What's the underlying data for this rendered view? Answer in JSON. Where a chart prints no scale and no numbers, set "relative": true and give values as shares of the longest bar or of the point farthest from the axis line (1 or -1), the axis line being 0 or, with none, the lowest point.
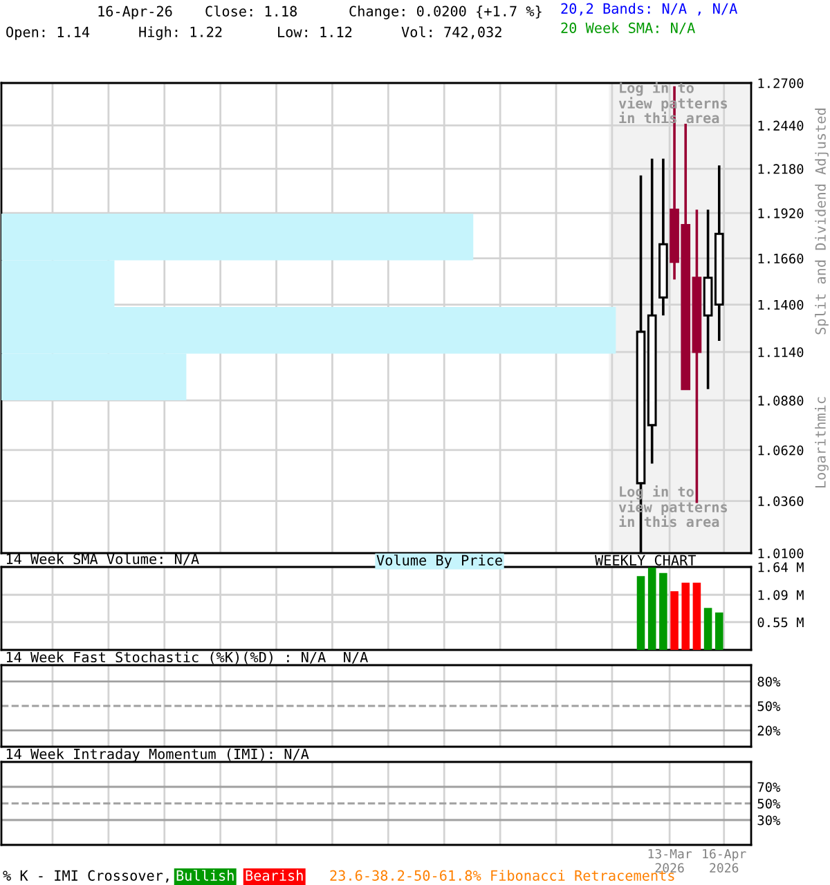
{
  "chart_data": [
    {
      "type": "candlestick",
      "x": [
        "2026-02-23",
        "2026-03-02",
        "2026-03-09",
        "2026-03-16",
        "2026-03-23",
        "2026-03-30",
        "2026-04-06",
        "2026-04-13"
      ],
      "ohlc": [
        [
          1.045,
          1.214,
          1.01,
          1.125
        ],
        [
          1.075,
          1.224,
          1.055,
          1.134
        ],
        [
          1.144,
          1.224,
          1.134,
          1.174
        ],
        [
          1.194,
          1.268,
          1.154,
          1.164
        ],
        [
          1.185,
          1.245,
          1.094,
          1.094
        ],
        [
          1.155,
          1.194,
          1.035,
          1.114
        ],
        [
          1.134,
          1.194,
          1.094,
          1.155
        ],
        [
          1.14,
          1.22,
          1.12,
          1.18
        ]
      ],
      "colors": [
        "#000000",
        "#000000",
        "#000000",
        "#990033",
        "#990033",
        "#990033",
        "#000000",
        "#000000"
      ],
      "log": true,
      "ylim": [
        1.01,
        1.27
      ],
      "yticks": [
        {
          "value": 1.27,
          "label": "1.2700"
        },
        {
          "value": 1.244,
          "label": "1.2440"
        },
        {
          "value": 1.218,
          "label": "1.2180"
        },
        {
          "value": 1.192,
          "label": "1.1920"
        },
        {
          "value": 1.166,
          "label": "1.1660"
        },
        {
          "value": 1.14,
          "label": "1.1400"
        },
        {
          "value": 1.114,
          "label": "1.1140"
        },
        {
          "value": 1.088,
          "label": "1.0880"
        },
        {
          "value": 1.062,
          "label": "1.0620"
        },
        {
          "value": 1.036,
          "label": "1.0360"
        },
        {
          "value": 1.01,
          "label": "1.0100"
        }
      ],
      "xlim": [
        "2025-01-19",
        "2026-05-03"
      ],
      "xticks": [
        {
          "value": "2025-02-20",
          "label": null
        },
        {
          "value": "2025-03-27",
          "label": null
        },
        {
          "value": "2025-05-01",
          "label": null
        },
        {
          "value": "2025-06-05",
          "label": null
        },
        {
          "value": "2025-07-10",
          "label": null
        },
        {
          "value": "2025-08-14",
          "label": null
        },
        {
          "value": "2025-09-18",
          "label": null
        },
        {
          "value": "2025-10-23",
          "label": null
        },
        {
          "value": "2025-11-27",
          "label": null
        },
        {
          "value": "2026-01-01",
          "label": null
        },
        {
          "value": "2026-02-05",
          "label": null
        },
        {
          "value": "2026-03-13",
          "label": null
        },
        {
          "value": "2026-04-16",
          "label": null
        }
      ],
      "tick_labels": "y",
      "grid": true,
      "bands": [
        {
          "axis": "x",
          "from": "2026-02-03",
          "to": "2026-05-03",
          "color": "#f2f2f2"
        }
      ],
      "ylabel": "Split and Dividend Adjusted",
      "annotations": [
        "16-Apr-26",
        "Close: 1.18",
        "Change: 0.0200 {+1.7 %}",
        "Open: 1.14",
        "High: 1.22",
        "Low: 1.12",
        "Vol: 742,032",
        "20,2 Bands: N/A , N/A",
        "20 Week SMA: N/A",
        "Log in to\nview patterns\nin this area",
        "Log in to\nview patterns\nin this area",
        "Logarithmic"
      ]
    },
    {
      "type": "bar",
      "orientation": "horizontal",
      "relative": true,
      "title": "Volume By Price",
      "categories": [
        null,
        null,
        null,
        null
      ],
      "values": [
        0.768,
        0.184,
        1,
        0.301
      ],
      "color": "#c6f4fc"
    },
    {
      "type": "bar",
      "title": "14 Week SMA Volume: N/A",
      "x": [
        "2026-02-23",
        "2026-03-02",
        "2026-03-09",
        "2026-03-16",
        "2026-03-23",
        "2026-03-30",
        "2026-04-06",
        "2026-04-13"
      ],
      "values": [
        1.46,
        1.63,
        1.52,
        1.16,
        1.33,
        1.33,
        0.83,
        0.74
      ],
      "colors": [
        "#009900",
        "#009900",
        "#009900",
        "#ff0000",
        "#ff0000",
        "#ff0000",
        "#009900",
        "#009900"
      ],
      "ylim": [
        0,
        1.64
      ],
      "yticks": [
        {
          "value": 0.55,
          "label": "0.55 M"
        },
        {
          "value": 1.09,
          "label": "1.09 M"
        },
        {
          "value": 1.64,
          "label": "1.64 M"
        }
      ],
      "xlim": [
        "2025-01-19",
        "2026-05-03"
      ],
      "xticks": [
        {
          "value": "2025-02-20",
          "label": null
        },
        {
          "value": "2025-03-27",
          "label": null
        },
        {
          "value": "2025-05-01",
          "label": null
        },
        {
          "value": "2025-06-05",
          "label": null
        },
        {
          "value": "2025-07-10",
          "label": null
        },
        {
          "value": "2025-08-14",
          "label": null
        },
        {
          "value": "2025-09-18",
          "label": null
        },
        {
          "value": "2025-10-23",
          "label": null
        },
        {
          "value": "2025-11-27",
          "label": null
        },
        {
          "value": "2026-01-01",
          "label": null
        },
        {
          "value": "2026-02-05",
          "label": null
        },
        {
          "value": "2026-03-13",
          "label": null
        },
        {
          "value": "2026-04-16",
          "label": null
        }
      ],
      "tick_labels": "y",
      "grid": true,
      "annotations": [
        "WEEKLY CHART"
      ]
    },
    {
      "type": "line",
      "title": "14 Week Fast Stochastic (%K)(%D) : N/A  N/A",
      "ylim": [
        0,
        100
      ],
      "yticks": [
        {
          "value": 80,
          "label": "80%"
        },
        {
          "value": 50,
          "label": "50%"
        },
        {
          "value": 20,
          "label": "20%"
        }
      ],
      "xlim": [
        "2025-01-19",
        "2026-05-03"
      ],
      "xticks": [
        {
          "value": "2025-02-20",
          "label": null
        },
        {
          "value": "2025-03-27",
          "label": null
        },
        {
          "value": "2025-05-01",
          "label": null
        },
        {
          "value": "2025-06-05",
          "label": null
        },
        {
          "value": "2025-07-10",
          "label": null
        },
        {
          "value": "2025-08-14",
          "label": null
        },
        {
          "value": "2025-09-18",
          "label": null
        },
        {
          "value": "2025-10-23",
          "label": null
        },
        {
          "value": "2025-11-27",
          "label": null
        },
        {
          "value": "2026-01-01",
          "label": null
        },
        {
          "value": "2026-02-05",
          "label": null
        },
        {
          "value": "2026-03-13",
          "label": null
        },
        {
          "value": "2026-04-16",
          "label": null
        }
      ],
      "tick_labels": "y",
      "grid": "x",
      "ref_lines": [
        {
          "axis": "y",
          "value": 80,
          "color": "#a0a0a0",
          "line_style": "solid"
        },
        {
          "axis": "y",
          "value": 50,
          "color": "#a0a0a0",
          "line_style": "dashed"
        },
        {
          "axis": "y",
          "value": 20,
          "color": "#a0a0a0",
          "line_style": "solid"
        }
      ]
    },
    {
      "type": "line",
      "title": "14 Week Intraday Momentum (IMI): N/A",
      "ylim": [
        0,
        100
      ],
      "yticks": [
        {
          "value": 70,
          "label": "70%"
        },
        {
          "value": 50,
          "label": "50%"
        },
        {
          "value": 30,
          "label": "30%"
        }
      ],
      "xlim": [
        "2025-01-19",
        "2026-05-03"
      ],
      "xticks": [
        {
          "value": "2025-02-20",
          "label": null
        },
        {
          "value": "2025-03-27",
          "label": null
        },
        {
          "value": "2025-05-01",
          "label": null
        },
        {
          "value": "2025-06-05",
          "label": null
        },
        {
          "value": "2025-07-10",
          "label": null
        },
        {
          "value": "2025-08-14",
          "label": null
        },
        {
          "value": "2025-09-18",
          "label": null
        },
        {
          "value": "2025-10-23",
          "label": null
        },
        {
          "value": "2025-11-27",
          "label": null
        },
        {
          "value": "2026-01-01",
          "label": null
        },
        {
          "value": "2026-02-05",
          "label": null
        },
        {
          "value": "2026-03-13",
          "label": "13-Mar\n2026"
        },
        {
          "value": "2026-04-16",
          "label": "16-Apr\n2026"
        }
      ],
      "grid": "x",
      "ref_lines": [
        {
          "axis": "y",
          "value": 70,
          "color": "#a0a0a0",
          "line_style": "solid"
        },
        {
          "axis": "y",
          "value": 50,
          "color": "#a0a0a0",
          "line_style": "dashed"
        },
        {
          "axis": "y",
          "value": 30,
          "color": "#a0a0a0",
          "line_style": "solid"
        }
      ],
      "annotations": [
        "% K - IMI Crossover,",
        "Bullish",
        "Bearish",
        "23.6-38.2-50-61.8% Fibonacci Retracements"
      ]
    }
  ]
}
